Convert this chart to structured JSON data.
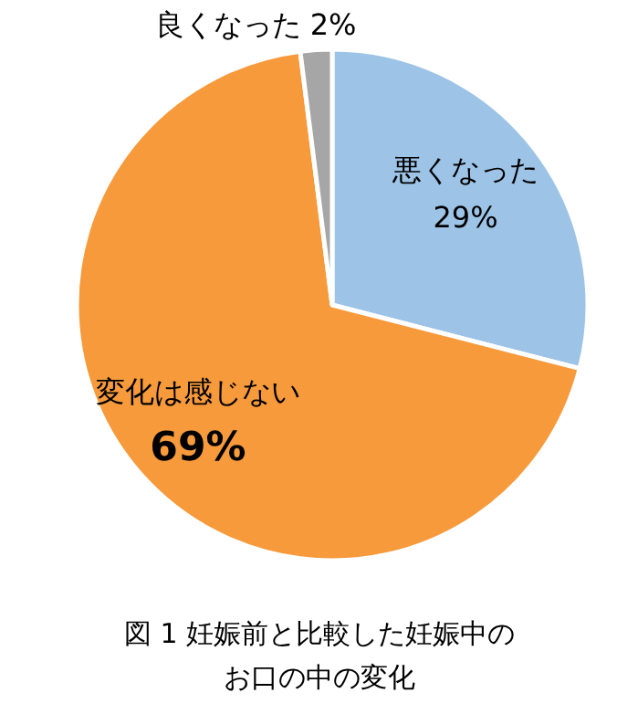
{
  "chart_data": {
    "type": "pie",
    "title": "図 1 妊娠前と比較した妊娠中のお口の中の変化",
    "categories": [
      "悪くなった",
      "変化は感じない",
      "良くなった"
    ],
    "values": [
      29,
      69,
      2
    ],
    "colors": [
      "#9dc3e6",
      "#f79a3b",
      "#a6a6a6"
    ],
    "value_labels": [
      "29%",
      "69%",
      "2%"
    ]
  }
}
